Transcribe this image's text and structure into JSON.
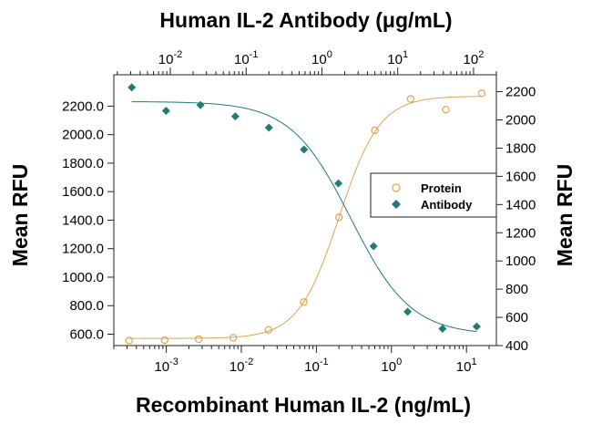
{
  "chart_data": {
    "type": "scatter",
    "title_top": "Human IL-2 Antibody (μg/mL)",
    "xlabel_bottom": "Recombinant Human IL-2 (ng/mL)",
    "ylabel_left": "Mean RFU",
    "ylabel_right": "Mean RFU",
    "x_bottom": {
      "scale": "log",
      "range": [
        0.0002,
        25
      ],
      "ticks": [
        {
          "value": 0.001,
          "label_base": "10",
          "label_exp": "-3"
        },
        {
          "value": 0.01,
          "label_base": "10",
          "label_exp": "-2"
        },
        {
          "value": 0.1,
          "label_base": "10",
          "label_exp": "-1"
        },
        {
          "value": 1,
          "label_base": "10",
          "label_exp": "0"
        },
        {
          "value": 10,
          "label_base": "10",
          "label_exp": "1"
        }
      ]
    },
    "x_top": {
      "scale": "log",
      "range": [
        0.0018,
        200
      ],
      "ticks": [
        {
          "value": 0.01,
          "label_base": "10",
          "label_exp": "-2"
        },
        {
          "value": 0.1,
          "label_base": "10",
          "label_exp": "-1"
        },
        {
          "value": 1,
          "label_base": "10",
          "label_exp": "0"
        },
        {
          "value": 10,
          "label_base": "10",
          "label_exp": "1"
        },
        {
          "value": 100,
          "label_base": "10",
          "label_exp": "2"
        }
      ]
    },
    "y_left": {
      "range": [
        520,
        2420
      ],
      "ticks": [
        {
          "value": 600,
          "label": "600.0"
        },
        {
          "value": 800,
          "label": "800.0"
        },
        {
          "value": 1000,
          "label": "1000.0"
        },
        {
          "value": 1200,
          "label": "1200.0"
        },
        {
          "value": 1400,
          "label": "1400.0"
        },
        {
          "value": 1600,
          "label": "1600.0"
        },
        {
          "value": 1800,
          "label": "1800.0"
        },
        {
          "value": 2000,
          "label": "2000.0"
        },
        {
          "value": 2200,
          "label": "2200.0"
        }
      ]
    },
    "y_right": {
      "range": [
        400,
        2320
      ],
      "ticks": [
        {
          "value": 400,
          "label": "400"
        },
        {
          "value": 600,
          "label": "600"
        },
        {
          "value": 800,
          "label": "800"
        },
        {
          "value": 1000,
          "label": "1000"
        },
        {
          "value": 1200,
          "label": "1200"
        },
        {
          "value": 1400,
          "label": "1400"
        },
        {
          "value": 1600,
          "label": "1600"
        },
        {
          "value": 1800,
          "label": "1800"
        },
        {
          "value": 2000,
          "label": "2000"
        },
        {
          "value": 2200,
          "label": "2200"
        }
      ]
    },
    "legend": {
      "position": "center-right",
      "entries": [
        {
          "name": "Protein",
          "marker": "open-circle",
          "color": "#E2A24F"
        },
        {
          "name": "Antibody",
          "marker": "filled-diamond",
          "color": "#1F7A78"
        }
      ]
    },
    "series": [
      {
        "name": "Protein",
        "axis_x": "bottom",
        "axis_y": "left",
        "marker": "open-circle",
        "color": "#E2A24F",
        "points": [
          {
            "x": 0.00032,
            "y": 555
          },
          {
            "x": 0.00095,
            "y": 558
          },
          {
            "x": 0.0027,
            "y": 565
          },
          {
            "x": 0.0078,
            "y": 575
          },
          {
            "x": 0.023,
            "y": 630
          },
          {
            "x": 0.068,
            "y": 825
          },
          {
            "x": 0.2,
            "y": 1420
          },
          {
            "x": 0.6,
            "y": 2030
          },
          {
            "x": 1.8,
            "y": 2250
          },
          {
            "x": 5.3,
            "y": 2175
          },
          {
            "x": 16,
            "y": 2290
          }
        ],
        "fit": {
          "type": "4PL",
          "bottom": 570,
          "top": 2270,
          "ec50": 0.2,
          "hill": 1.6
        }
      },
      {
        "name": "Antibody",
        "axis_x": "top",
        "axis_y": "right",
        "marker": "filled-diamond",
        "color": "#1F7A78",
        "points": [
          {
            "x": 0.0031,
            "y": 2230
          },
          {
            "x": 0.0088,
            "y": 2065
          },
          {
            "x": 0.025,
            "y": 2105
          },
          {
            "x": 0.072,
            "y": 2025
          },
          {
            "x": 0.2,
            "y": 1945
          },
          {
            "x": 0.58,
            "y": 1790
          },
          {
            "x": 1.65,
            "y": 1550
          },
          {
            "x": 4.8,
            "y": 1105
          },
          {
            "x": 13.5,
            "y": 640
          },
          {
            "x": 39,
            "y": 520
          },
          {
            "x": 110,
            "y": 535
          }
        ],
        "fit": {
          "type": "4PL",
          "top": 2130,
          "bottom": 475,
          "ec50": 2.4,
          "hill": 1.1
        }
      }
    ]
  }
}
